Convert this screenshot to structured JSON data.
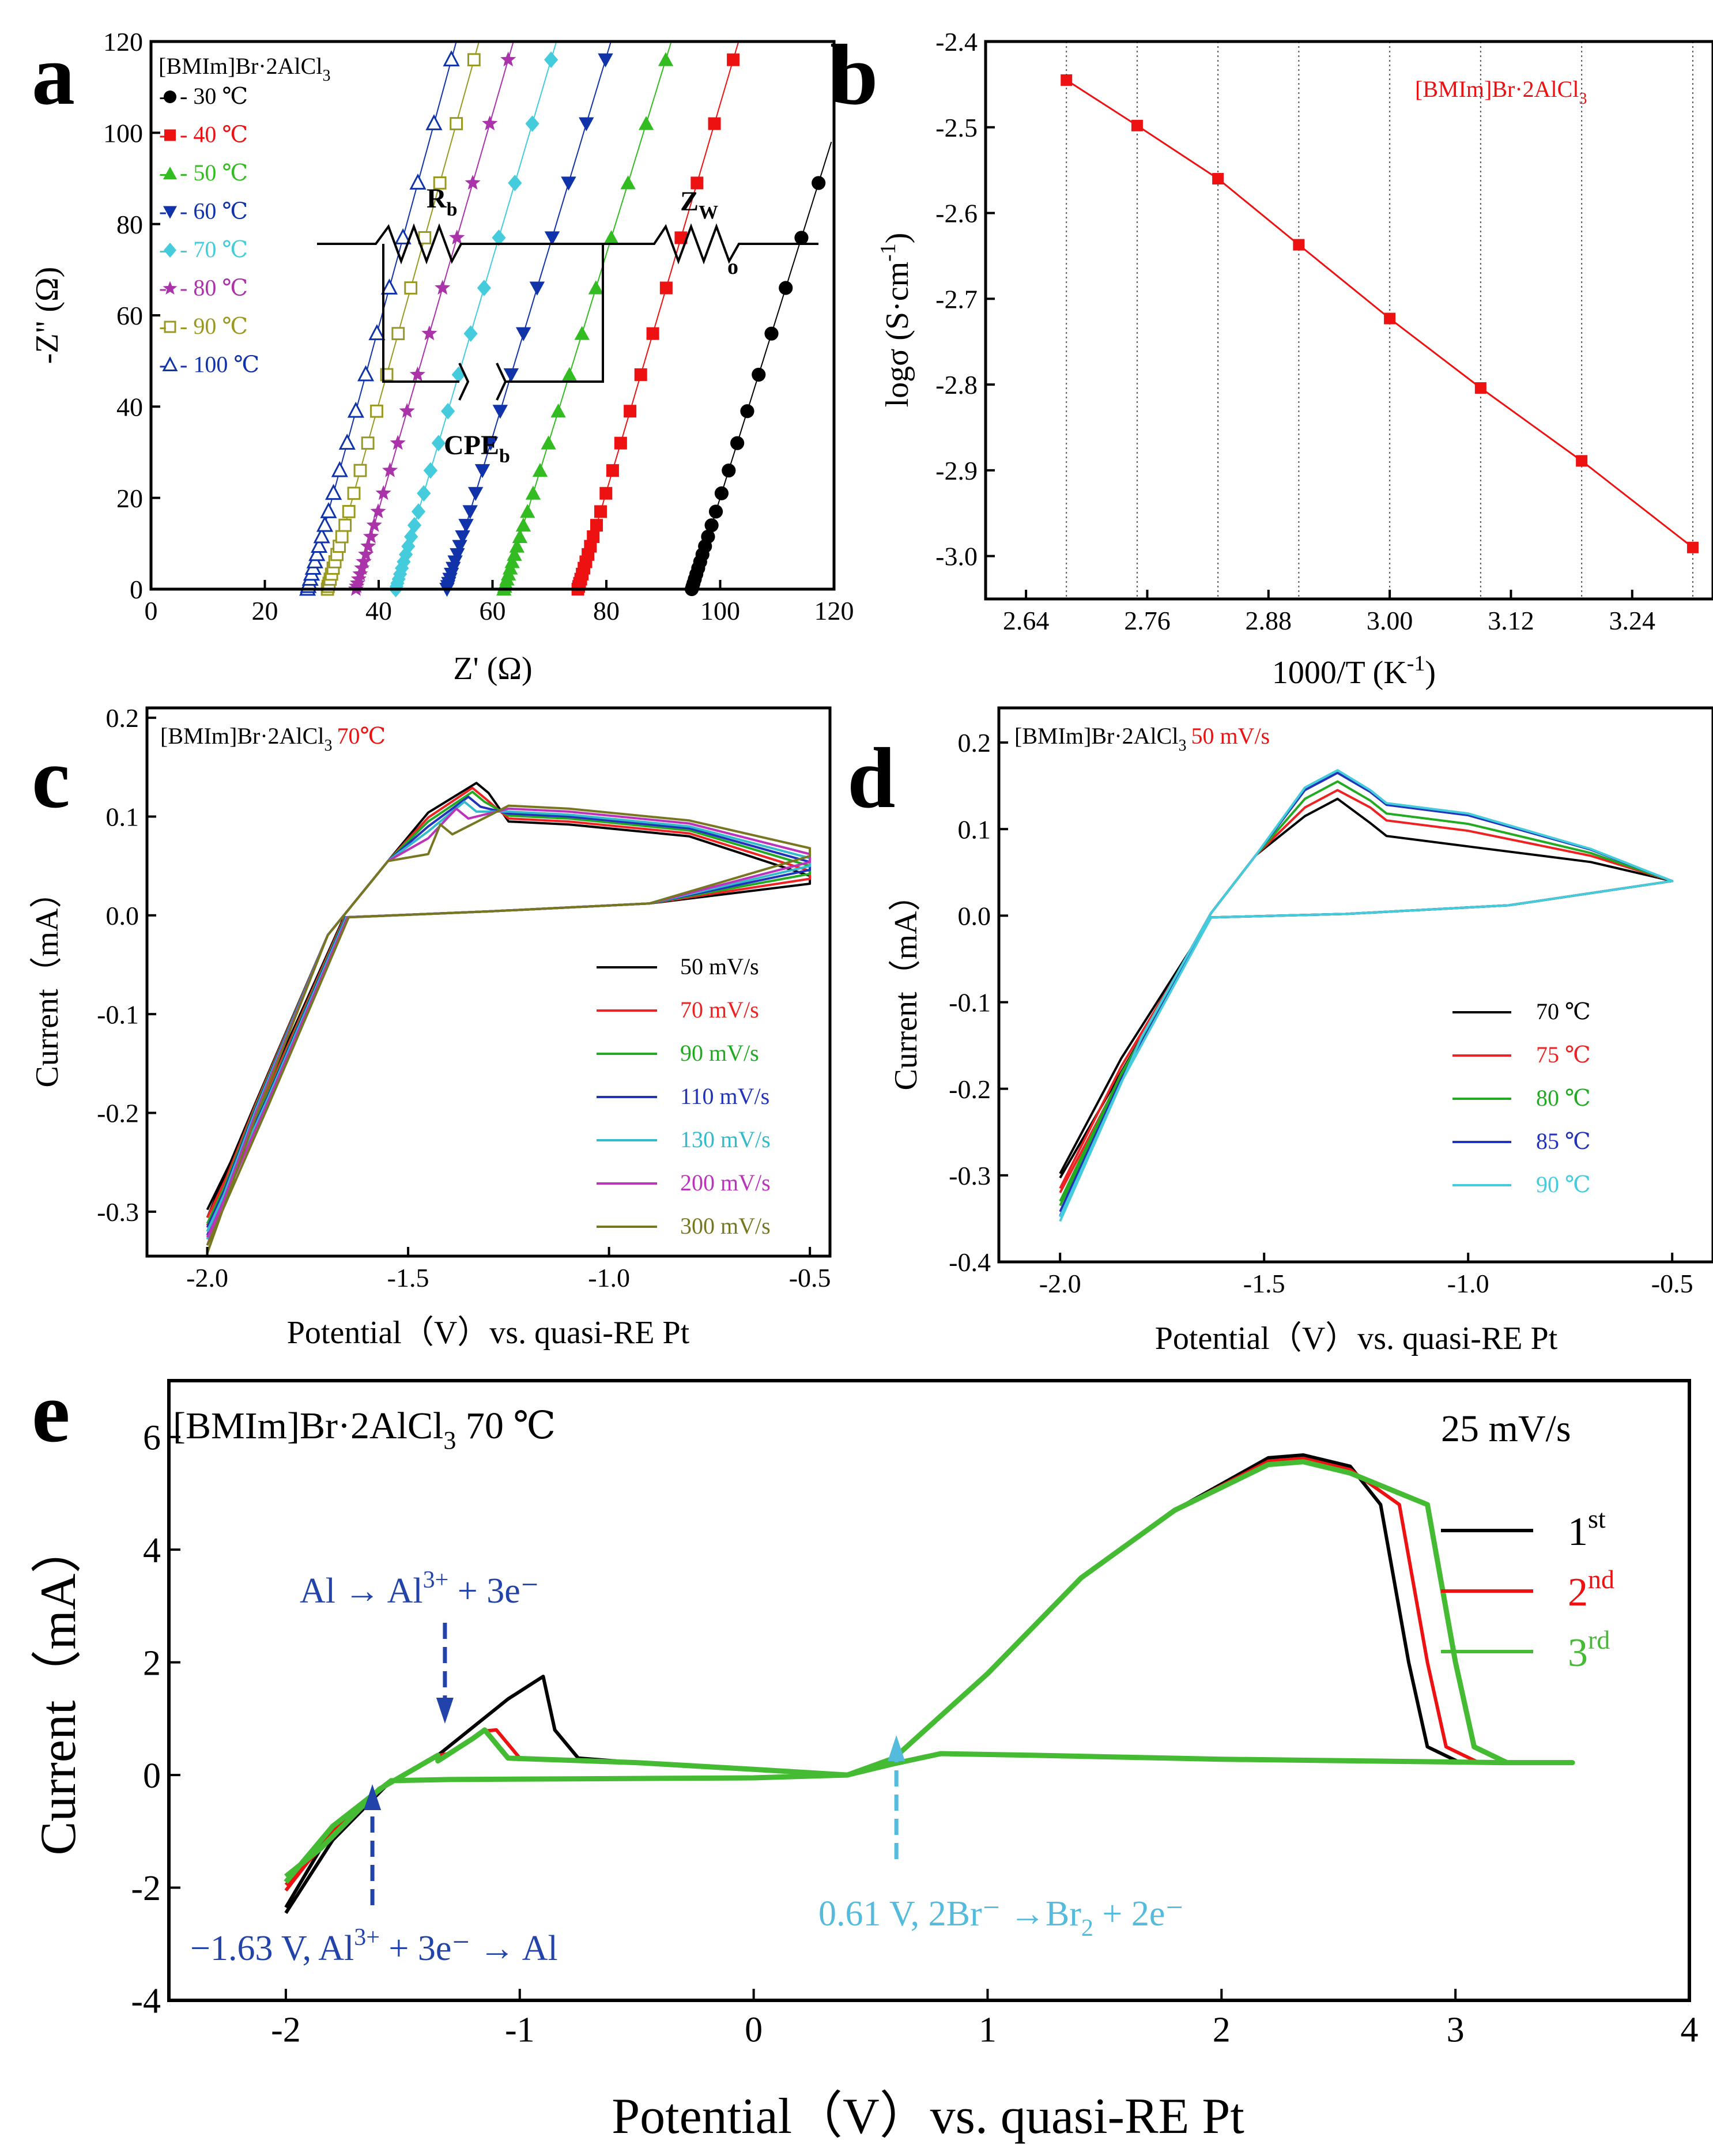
{
  "chart_data": [
    {
      "type": "scatter",
      "panel_label": "a",
      "title": "[BMIm]Br·2AlCl",
      "title_sub": "3",
      "xlabel": "Z' (Ω)",
      "ylabel": "-Z\" (Ω)",
      "xlim": [
        0,
        120
      ],
      "ylim": [
        0,
        120
      ],
      "xticks": [
        "0",
        "20",
        "40",
        "60",
        "80",
        "100",
        "120"
      ],
      "yticks": [
        "0",
        "20",
        "40",
        "60",
        "80",
        "100",
        "120"
      ],
      "series": [
        {
          "name": "30 ℃",
          "legend_text": "- 30 ℃",
          "color": "#000000",
          "marker": "circle",
          "x0": 95,
          "slope": 4.3
        },
        {
          "name": "40 ℃",
          "legend_text": "- 40 ℃",
          "color": "#ee1111",
          "marker": "square",
          "x0": 75,
          "slope": 4.6
        },
        {
          "name": "50 ℃",
          "legend_text": "- 50 ℃",
          "color": "#33bb22",
          "marker": "triangle",
          "x0": 62,
          "slope": 4.4
        },
        {
          "name": "60 ℃",
          "legend_text": "-  60 ℃",
          "color": "#1133aa",
          "marker": "triangle-down",
          "x0": 52,
          "slope": 4.5
        },
        {
          "name": "70 ℃",
          "legend_text": "- 70 ℃",
          "color": "#44ccdd",
          "marker": "diamond",
          "x0": 43,
          "slope": 4.6
        },
        {
          "name": "80 ℃",
          "legend_text": "- 80 ℃",
          "color": "#aa33aa",
          "marker": "star",
          "x0": 36,
          "slope": 4.7
        },
        {
          "name": "90 ℃",
          "legend_text": "- 90 ℃",
          "color": "#999922",
          "marker": "open-square",
          "x0": 31,
          "slope": 4.9
        },
        {
          "name": "100 ℃",
          "legend_text": "- 100 ℃",
          "color": "#1133aa",
          "marker": "open-triangle",
          "x0": 27.5,
          "slope": 5.0
        }
      ],
      "circuit": {
        "Rb": "R",
        "Rb_sub": "b",
        "Zw": "Z",
        "Zw_sub": "W",
        "Zw_o": "o",
        "CPE": "CPE",
        "CPE_sub": "b"
      }
    },
    {
      "type": "line",
      "panel_label": "b",
      "title": "[BMIm]Br·2AlCl",
      "title_sub": "3",
      "xlabel": "1000/T (K",
      "xlabel_sup": "-1",
      "xlabel_end": ")",
      "ylabel": "logσ (S·cm",
      "ylabel_sup": "-1",
      "ylabel_end": ")",
      "xlim": [
        2.6,
        3.32
      ],
      "ylim": [
        -3.05,
        -2.4
      ],
      "xticks": [
        "2.64",
        "2.76",
        "2.88",
        "3.00",
        "3.12",
        "3.24"
      ],
      "yticks": [
        "-2.4",
        "-2.5",
        "-2.6",
        "-2.7",
        "-2.8",
        "-2.9",
        "-3.0"
      ],
      "x": [
        2.68,
        2.75,
        2.83,
        2.91,
        3.0,
        3.09,
        3.19,
        3.3
      ],
      "y": [
        -2.445,
        -2.498,
        -2.56,
        -2.637,
        -2.723,
        -2.804,
        -2.889,
        -2.99
      ],
      "color": "#ee1111"
    },
    {
      "type": "line",
      "panel_label": "c",
      "title": "[BMIm]Br·2AlCl",
      "title_sub": "3",
      "title_red": "70℃",
      "xlabel": "Potential（V）vs. quasi-RE Pt",
      "ylabel": "Current（mA）",
      "xlim": [
        -2.15,
        -0.45
      ],
      "ylim": [
        -0.345,
        0.21
      ],
      "xticks": [
        "-2.0",
        "-1.5",
        "-1.0",
        "-0.5"
      ],
      "yticks": [
        "0.2",
        "0.1",
        "0.0",
        "-0.1",
        "-0.2",
        "-0.3"
      ],
      "series": [
        {
          "name": "50 mV/s",
          "color": "#000000",
          "peak_x": -1.33,
          "peak_y": 0.134,
          "plateau": 0.092,
          "end_y": 0.04,
          "vmin": -0.298,
          "sh": 0.0
        },
        {
          "name": "70 mV/s",
          "color": "#ee2222",
          "peak_x": -1.34,
          "peak_y": 0.129,
          "plateau": 0.095,
          "end_y": 0.045,
          "vmin": -0.306,
          "sh": 0.004
        },
        {
          "name": "90 mV/s",
          "color": "#22aa22",
          "peak_x": -1.34,
          "peak_y": 0.125,
          "plateau": 0.098,
          "end_y": 0.05,
          "vmin": -0.312,
          "sh": 0.008
        },
        {
          "name": "110 mV/s",
          "color": "#2233bb",
          "peak_x": -1.35,
          "peak_y": 0.12,
          "plateau": 0.1,
          "end_y": 0.054,
          "vmin": -0.316,
          "sh": 0.012
        },
        {
          "name": "130 mV/s",
          "color": "#33bbcc",
          "peak_x": -1.36,
          "peak_y": 0.115,
          "plateau": 0.102,
          "end_y": 0.058,
          "vmin": -0.32,
          "sh": 0.016
        },
        {
          "name": "200 mV/s",
          "color": "#bb33bb",
          "peak_x": -1.38,
          "peak_y": 0.108,
          "plateau": 0.105,
          "end_y": 0.062,
          "vmin": -0.326,
          "sh": 0.022
        },
        {
          "name": "300 mV/s",
          "color": "#777722",
          "peak_x": -1.42,
          "peak_y": 0.092,
          "plateau": 0.108,
          "end_y": 0.068,
          "vmin": -0.334,
          "sh": 0.03
        }
      ]
    },
    {
      "type": "line",
      "panel_label": "d",
      "title": "[BMIm]Br·2AlCl",
      "title_sub": "3",
      "title_red": "50 mV/s",
      "xlabel": "Potential（V）vs. quasi-RE Pt",
      "ylabel": "Current（mA）",
      "xlim": [
        -2.15,
        -0.4
      ],
      "ylim": [
        -0.4,
        0.24
      ],
      "xticks": [
        "-2.0",
        "-1.5",
        "-1.0",
        "-0.5"
      ],
      "yticks": [
        "0.2",
        "0.1",
        "0.0",
        "-0.1",
        "-0.2",
        "-0.3",
        "-0.4"
      ],
      "series": [
        {
          "name": "70 ℃",
          "color": "#000000",
          "peak_y": 0.135,
          "shoulder": 0.092,
          "vmin": -0.298
        },
        {
          "name": "75 ℃",
          "color": "#ee2222",
          "peak_y": 0.145,
          "shoulder": 0.11,
          "vmin": -0.315
        },
        {
          "name": "80 ℃",
          "color": "#22aa22",
          "peak_y": 0.155,
          "shoulder": 0.118,
          "vmin": -0.33
        },
        {
          "name": "85 ℃",
          "color": "#2233bb",
          "peak_y": 0.165,
          "shoulder": 0.128,
          "vmin": -0.342
        },
        {
          "name": "90 ℃",
          "color": "#44ccdd",
          "peak_y": 0.168,
          "shoulder": 0.13,
          "vmin": -0.348
        }
      ]
    },
    {
      "type": "line",
      "panel_label": "e",
      "title": "[BMIm]Br·2AlCl",
      "title_sub": "3",
      "title_end": " 70 ℃",
      "scan_rate": "25 mV/s",
      "xlabel": "Potential（V）vs. quasi-RE Pt",
      "ylabel": "Current（mA）",
      "xlim": [
        -2.5,
        4
      ],
      "ylim": [
        -4,
        7
      ],
      "xticks": [
        "-2",
        "-1",
        "0",
        "1",
        "2",
        "3",
        "4"
      ],
      "yticks": [
        "6",
        "4",
        "2",
        "0",
        "-2",
        "-4"
      ],
      "series": [
        {
          "name": "1",
          "sup": "st",
          "color": "#000000",
          "al_peak_x": -0.9,
          "al_peak_y": 1.75,
          "peak_y": 5.68,
          "drop_x": 2.8,
          "vmin": -2.45
        },
        {
          "name": "2",
          "sup": "nd",
          "color": "#ee1111",
          "al_peak_x": -1.15,
          "al_peak_y": 0.78,
          "peak_y": 5.62,
          "drop_x": 2.88,
          "vmin": -2.05
        },
        {
          "name": "3",
          "sup": "rd",
          "color": "#44bb33",
          "al_peak_x": -1.2,
          "al_peak_y": 0.65,
          "peak_y": 5.56,
          "drop_x": 3.0,
          "vmin": -1.9
        }
      ],
      "annotations": {
        "oxidation_al": {
          "x": -1.32,
          "text": "Al → Al",
          "sup": "3+",
          "end": " + 3e⁻",
          "color": "#2244aa"
        },
        "reduction_al": {
          "x": -1.63,
          "text": "−1.63 V, Al",
          "sup": "3+",
          "end": " + 3e⁻ → Al",
          "color": "#2244aa"
        },
        "bromide": {
          "x": 0.61,
          "text": "0.61 V, 2Br⁻ →Br",
          "sub": "2",
          "end": " + 2e⁻",
          "color": "#55bbdd"
        }
      }
    }
  ]
}
